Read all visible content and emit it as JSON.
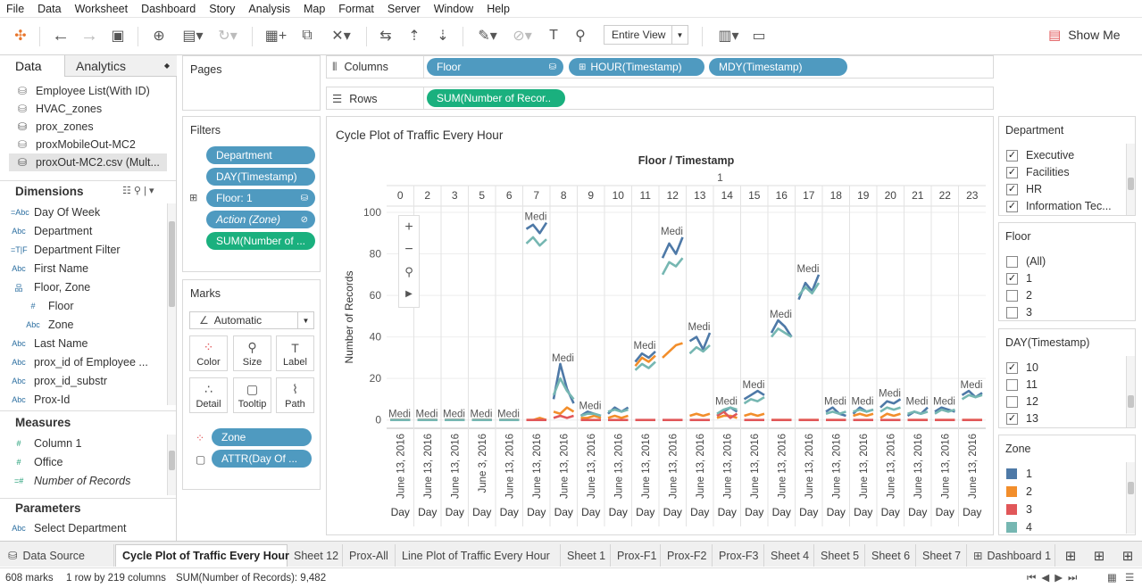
{
  "menu": [
    "File",
    "Data",
    "Worksheet",
    "Dashboard",
    "Story",
    "Analysis",
    "Map",
    "Format",
    "Server",
    "Window",
    "Help"
  ],
  "toolbar": {
    "entire_view": "Entire View",
    "show_me": "Show Me"
  },
  "left": {
    "tab_data": "Data",
    "tab_analytics": "Analytics",
    "sources": [
      "Employee List(With ID)",
      "HVAC_zones",
      "prox_zones",
      "proxMobileOut-MC2",
      "proxOut-MC2.csv (Mult..."
    ],
    "dimensions_title": "Dimensions",
    "dimensions": [
      {
        "icon": "=Abc",
        "label": "Day Of Week"
      },
      {
        "icon": "Abc",
        "label": "Department"
      },
      {
        "icon": "=T|F",
        "label": "Department Filter"
      },
      {
        "icon": "Abc",
        "label": "First Name"
      },
      {
        "icon": "品",
        "label": "Floor, Zone"
      },
      {
        "icon": "#",
        "label": "Floor"
      },
      {
        "icon": "Abc",
        "label": "Zone"
      },
      {
        "icon": "Abc",
        "label": "Last Name"
      },
      {
        "icon": "Abc",
        "label": "prox_id of Employee ..."
      },
      {
        "icon": "Abc",
        "label": "prox_id_substr"
      },
      {
        "icon": "Abc",
        "label": "Prox-Id"
      }
    ],
    "measures_title": "Measures",
    "measures": [
      {
        "icon": "#",
        "label": "Column 1"
      },
      {
        "icon": "#",
        "label": "Office"
      },
      {
        "icon": "=#",
        "label": "Number of Records"
      }
    ],
    "parameters_title": "Parameters",
    "parameters": [
      {
        "icon": "Abc",
        "label": "Select Department"
      }
    ]
  },
  "pages": {
    "title": "Pages"
  },
  "filters": {
    "title": "Filters",
    "items": [
      "Department",
      "DAY(Timestamp)",
      "Floor: 1",
      "Action (Zone)",
      "SUM(Number of ..."
    ]
  },
  "marks": {
    "title": "Marks",
    "type": "Automatic",
    "buttons": [
      "Color",
      "Size",
      "Label",
      "Detail",
      "Tooltip",
      "Path"
    ],
    "fields": [
      "Zone",
      "ATTR(Day Of ..."
    ]
  },
  "shelves": {
    "columns_label": "Columns",
    "rows_label": "Rows",
    "columns": [
      "Floor",
      "HOUR(Timestamp)",
      "MDY(Timestamp)"
    ],
    "rows": [
      "SUM(Number of Recor.."
    ]
  },
  "viz": {
    "title": "Cycle Plot of Traffic Every Hour",
    "header": "Floor / Timestamp",
    "floor": "1",
    "mark_label": "Medi"
  },
  "chart_data": {
    "type": "line",
    "title": "Cycle Plot of Traffic Every Hour",
    "xlabel": "Floor / Timestamp",
    "ylabel": "Number of Records",
    "ylim": [
      -4,
      103
    ],
    "yticks": [
      0,
      20,
      40,
      60,
      80,
      100
    ],
    "hours": [
      "0",
      "2",
      "3",
      "5",
      "6",
      "7",
      "8",
      "9",
      "10",
      "11",
      "12",
      "13",
      "14",
      "15",
      "16",
      "17",
      "18",
      "19",
      "20",
      "21",
      "22",
      "23"
    ],
    "date_labels": [
      "June 13, 2016",
      "June 13, 2016",
      "June 13, 2016",
      "June 3, 2016",
      "June 13, 2016",
      "June 13, 2016",
      "June 13, 2016",
      "June 13, 2016",
      "June 13, 2016",
      "June 13, 2016",
      "June 13, 2016",
      "June 13, 2016",
      "June 13, 2016",
      "June 13, 2016",
      "June 13, 2016",
      "June 13, 2016",
      "June 13, 2016",
      "June 13, 2016",
      "June 13, 2016",
      "June 13, 2016",
      "June 13, 2016",
      "June 13, 2016"
    ],
    "day_label": "Day",
    "grid": true,
    "series": [
      {
        "name": "1",
        "color": "#4e79a7",
        "values": [
          [
            0,
            0,
            0,
            0
          ],
          [
            0,
            0,
            0,
            0
          ],
          [
            0,
            0,
            0,
            0
          ],
          [
            0,
            0,
            0,
            0
          ],
          [
            0,
            0,
            0,
            0
          ],
          [
            92,
            94,
            90,
            95
          ],
          [
            10,
            27,
            15,
            8
          ],
          [
            2,
            4,
            3,
            2
          ],
          [
            3,
            6,
            4,
            6
          ],
          [
            28,
            32,
            30,
            33
          ],
          [
            78,
            85,
            80,
            88
          ],
          [
            38,
            40,
            34,
            42
          ],
          [
            2,
            4,
            6,
            4
          ],
          [
            10,
            12,
            14,
            12
          ],
          [
            42,
            48,
            45,
            40
          ],
          [
            58,
            66,
            62,
            70
          ],
          [
            4,
            6,
            3,
            2
          ],
          [
            3,
            6,
            4,
            5
          ],
          [
            6,
            9,
            8,
            10
          ],
          [
            2,
            4,
            3,
            6
          ],
          [
            4,
            6,
            5,
            4
          ],
          [
            12,
            14,
            11,
            13
          ]
        ]
      },
      {
        "name": "2",
        "color": "#f28e2b",
        "values": [
          [
            0,
            0,
            0,
            0
          ],
          [
            0,
            0,
            0,
            0
          ],
          [
            0,
            0,
            0,
            0
          ],
          [
            0,
            0,
            0,
            0
          ],
          [
            0,
            0,
            0,
            0
          ],
          [
            0,
            0,
            1,
            0
          ],
          [
            4,
            3,
            6,
            4
          ],
          [
            1,
            1,
            2,
            1
          ],
          [
            1,
            2,
            1,
            2
          ],
          [
            26,
            30,
            28,
            31
          ],
          [
            30,
            33,
            36,
            37
          ],
          [
            2,
            3,
            2,
            3
          ],
          [
            1,
            2,
            2,
            1
          ],
          [
            2,
            3,
            2,
            3
          ],
          [
            0,
            0,
            0,
            0
          ],
          [
            0,
            0,
            0,
            0
          ],
          [
            0,
            0,
            0,
            0
          ],
          [
            2,
            3,
            2,
            3
          ],
          [
            1,
            3,
            2,
            3
          ],
          [
            0,
            0,
            0,
            0
          ],
          [
            0,
            0,
            0,
            0
          ],
          [
            0,
            0,
            0,
            0
          ]
        ]
      },
      {
        "name": "3",
        "color": "#e15759",
        "values": [
          [
            0,
            0,
            0,
            0
          ],
          [
            0,
            0,
            0,
            0
          ],
          [
            0,
            0,
            0,
            0
          ],
          [
            0,
            0,
            0,
            0
          ],
          [
            0,
            0,
            0,
            0
          ],
          [
            0,
            0,
            0,
            0
          ],
          [
            1,
            2,
            1,
            2
          ],
          [
            0,
            0,
            0,
            0
          ],
          [
            0,
            0,
            0,
            0
          ],
          [
            0,
            0,
            0,
            0
          ],
          [
            0,
            0,
            0,
            0
          ],
          [
            0,
            0,
            0,
            0
          ],
          [
            2,
            4,
            1,
            3
          ],
          [
            0,
            0,
            0,
            0
          ],
          [
            0,
            0,
            0,
            0
          ],
          [
            0,
            0,
            0,
            0
          ],
          [
            0,
            0,
            0,
            0
          ],
          [
            0,
            0,
            0,
            0
          ],
          [
            0,
            0,
            0,
            0
          ],
          [
            0,
            0,
            0,
            0
          ],
          [
            0,
            0,
            0,
            0
          ],
          [
            0,
            0,
            0,
            0
          ]
        ]
      },
      {
        "name": "4",
        "color": "#76b7b2",
        "values": [
          [
            0,
            0,
            0,
            0
          ],
          [
            0,
            0,
            0,
            0
          ],
          [
            0,
            0,
            0,
            0
          ],
          [
            0,
            0,
            0,
            0
          ],
          [
            0,
            0,
            0,
            0
          ],
          [
            85,
            88,
            84,
            87
          ],
          [
            12,
            20,
            14,
            10
          ],
          [
            2,
            3,
            3,
            2
          ],
          [
            4,
            5,
            4,
            5
          ],
          [
            24,
            27,
            25,
            28
          ],
          [
            70,
            76,
            74,
            78
          ],
          [
            32,
            35,
            33,
            36
          ],
          [
            3,
            5,
            6,
            5
          ],
          [
            8,
            10,
            9,
            11
          ],
          [
            40,
            44,
            42,
            40
          ],
          [
            60,
            64,
            61,
            66
          ],
          [
            3,
            4,
            3,
            4
          ],
          [
            4,
            5,
            4,
            5
          ],
          [
            4,
            6,
            5,
            6
          ],
          [
            3,
            4,
            3,
            4
          ],
          [
            3,
            5,
            4,
            5
          ],
          [
            10,
            12,
            11,
            12
          ]
        ]
      }
    ]
  },
  "right": {
    "department": {
      "title": "Department",
      "items": [
        {
          "label": "Executive",
          "checked": true
        },
        {
          "label": "Facilities",
          "checked": true
        },
        {
          "label": "HR",
          "checked": true
        },
        {
          "label": "Information Tec...",
          "checked": true
        }
      ]
    },
    "floor": {
      "title": "Floor",
      "items": [
        {
          "label": "(All)",
          "checked": false
        },
        {
          "label": "1",
          "checked": true
        },
        {
          "label": "2",
          "checked": false
        },
        {
          "label": "3",
          "checked": false
        }
      ]
    },
    "day": {
      "title": "DAY(Timestamp)",
      "items": [
        {
          "label": "10",
          "checked": true
        },
        {
          "label": "11",
          "checked": false
        },
        {
          "label": "12",
          "checked": false
        },
        {
          "label": "13",
          "checked": true
        }
      ]
    },
    "zone": {
      "title": "Zone",
      "items": [
        {
          "label": "1",
          "color": "#4e79a7"
        },
        {
          "label": "2",
          "color": "#f28e2b"
        },
        {
          "label": "3",
          "color": "#e15759"
        },
        {
          "label": "4",
          "color": "#76b7b2"
        }
      ]
    }
  },
  "tabs": {
    "data_source": "Data Source",
    "sheets": [
      "Cycle Plot of Traffic Every Hour",
      "Sheet 12",
      "Prox-All",
      "Line Plot of Traffic Every Hour",
      "Sheet 1",
      "Prox-F1",
      "Prox-F2",
      "Prox-F3",
      "Sheet 4",
      "Sheet 5",
      "Sheet 6",
      "Sheet 7",
      "Dashboard 1"
    ]
  },
  "status": {
    "marks": "608 marks",
    "rows_cols": "1 row by 219 columns",
    "sum": "SUM(Number of Records): 9,482"
  }
}
